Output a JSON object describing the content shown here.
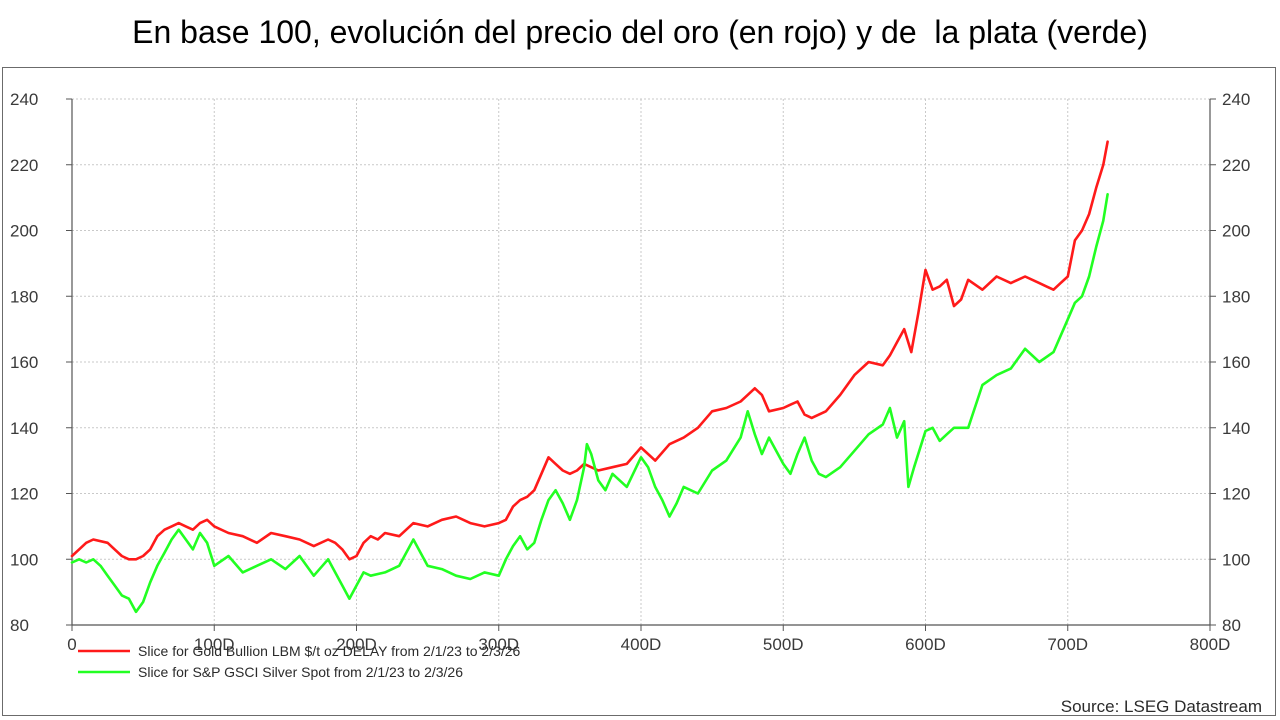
{
  "page": {
    "title": "En base 100, evolución del precio del oro (en rojo) y de  la plata (verde)"
  },
  "chart_data": {
    "type": "line",
    "title": "En base 100, evolución del precio del oro (en rojo) y de  la plata (verde)",
    "xlabel": "",
    "ylabel": "",
    "xlim": [
      0,
      800
    ],
    "ylim": [
      80,
      240
    ],
    "x_ticks": [
      0,
      100,
      200,
      300,
      400,
      500,
      600,
      700,
      800
    ],
    "x_tick_labels": [
      "0",
      "100D",
      "200D",
      "300D",
      "400D",
      "500D",
      "600D",
      "700D",
      "800D"
    ],
    "y_ticks": [
      80,
      100,
      120,
      140,
      160,
      180,
      200,
      220,
      240
    ],
    "y_tick_labels": [
      "80",
      "100",
      "120",
      "140",
      "160",
      "180",
      "200",
      "220",
      "240"
    ],
    "grid": true,
    "legend_position": "bottom-left",
    "source": "Source: LSEG Datastream",
    "series": [
      {
        "name": "Slice for Gold Bullion LBM $/t oz DELAY from 2/1/23 to 2/3/26",
        "color": "#ff1a1a",
        "x": [
          0,
          5,
          10,
          15,
          25,
          30,
          35,
          40,
          45,
          50,
          55,
          60,
          65,
          70,
          75,
          80,
          85,
          90,
          95,
          100,
          110,
          120,
          130,
          140,
          150,
          160,
          170,
          180,
          185,
          190,
          195,
          200,
          205,
          210,
          215,
          220,
          230,
          240,
          250,
          260,
          270,
          280,
          290,
          300,
          305,
          310,
          315,
          320,
          325,
          330,
          335,
          340,
          345,
          350,
          355,
          360,
          365,
          370,
          380,
          390,
          400,
          410,
          420,
          430,
          440,
          450,
          460,
          470,
          475,
          480,
          485,
          490,
          500,
          505,
          510,
          515,
          520,
          530,
          540,
          550,
          560,
          570,
          575,
          580,
          585,
          590,
          595,
          600,
          605,
          610,
          615,
          620,
          625,
          630,
          640,
          650,
          660,
          670,
          680,
          685,
          690,
          695,
          700,
          705,
          710,
          715,
          720,
          725,
          728
        ],
        "values": [
          101,
          103,
          105,
          106,
          105,
          103,
          101,
          100,
          100,
          101,
          103,
          107,
          109,
          110,
          111,
          110,
          109,
          111,
          112,
          110,
          108,
          107,
          105,
          108,
          107,
          106,
          104,
          106,
          105,
          103,
          100,
          101,
          105,
          107,
          106,
          108,
          107,
          111,
          110,
          112,
          113,
          111,
          110,
          111,
          112,
          116,
          118,
          119,
          121,
          126,
          131,
          129,
          127,
          126,
          127,
          129,
          128,
          127,
          128,
          129,
          134,
          130,
          135,
          137,
          140,
          145,
          146,
          148,
          150,
          152,
          150,
          145,
          146,
          147,
          148,
          144,
          143,
          145,
          150,
          156,
          160,
          159,
          162,
          166,
          170,
          163,
          175,
          188,
          182,
          183,
          185,
          177,
          179,
          185,
          182,
          186,
          184,
          186,
          184,
          183,
          182,
          184,
          186,
          197,
          200,
          205,
          213,
          220,
          227
        ]
      },
      {
        "name": "Slice for S&P GSCI Silver Spot from 2/1/23 to 2/3/26",
        "color": "#22ff22",
        "x": [
          0,
          5,
          10,
          15,
          20,
          25,
          30,
          35,
          40,
          45,
          50,
          55,
          60,
          65,
          70,
          75,
          80,
          85,
          90,
          95,
          100,
          110,
          120,
          130,
          140,
          150,
          160,
          170,
          180,
          185,
          190,
          195,
          200,
          205,
          210,
          220,
          230,
          240,
          250,
          260,
          270,
          280,
          290,
          300,
          305,
          310,
          315,
          320,
          325,
          330,
          335,
          340,
          345,
          350,
          355,
          360,
          362,
          365,
          370,
          375,
          380,
          390,
          400,
          405,
          410,
          415,
          420,
          425,
          430,
          440,
          450,
          460,
          470,
          475,
          480,
          485,
          490,
          500,
          505,
          510,
          515,
          520,
          525,
          530,
          540,
          550,
          560,
          570,
          575,
          580,
          585,
          588,
          592,
          600,
          605,
          610,
          615,
          620,
          630,
          640,
          650,
          660,
          670,
          680,
          690,
          700,
          705,
          710,
          715,
          720,
          725,
          728
        ],
        "values": [
          99,
          100,
          99,
          100,
          98,
          95,
          92,
          89,
          88,
          84,
          87,
          93,
          98,
          102,
          106,
          109,
          106,
          103,
          108,
          105,
          98,
          101,
          96,
          98,
          100,
          97,
          101,
          95,
          100,
          96,
          92,
          88,
          92,
          96,
          95,
          96,
          98,
          106,
          98,
          97,
          95,
          94,
          96,
          95,
          100,
          104,
          107,
          103,
          105,
          112,
          118,
          121,
          117,
          112,
          118,
          128,
          135,
          132,
          124,
          121,
          126,
          122,
          131,
          128,
          122,
          118,
          113,
          117,
          122,
          120,
          127,
          130,
          137,
          145,
          138,
          132,
          137,
          129,
          126,
          132,
          137,
          130,
          126,
          125,
          128,
          133,
          138,
          141,
          146,
          137,
          142,
          122,
          128,
          139,
          140,
          136,
          138,
          140,
          140,
          153,
          156,
          158,
          164,
          160,
          163,
          173,
          178,
          180,
          186,
          195,
          203,
          211
        ]
      }
    ]
  }
}
